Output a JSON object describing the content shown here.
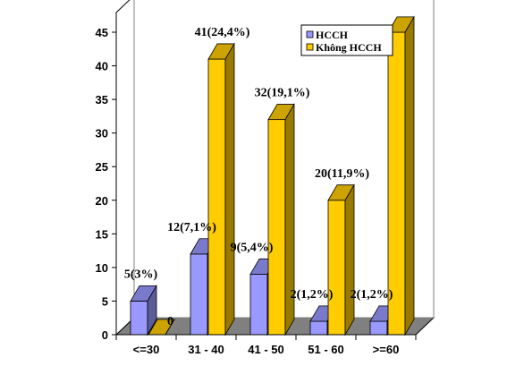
{
  "chart_data": {
    "type": "bar",
    "categories": [
      "<=30",
      "31 - 40",
      "41 - 50",
      "51 - 60",
      ">=60"
    ],
    "series": [
      {
        "name": "HCCH",
        "values": [
          5,
          12,
          9,
          2,
          2
        ],
        "labels": [
          "5(3%)",
          "12(7,1%)",
          "9(5,4%)",
          "2(1,2%)",
          "2(1,2%)"
        ],
        "color": "#9999ff"
      },
      {
        "name": "Không HCCH",
        "values": [
          0,
          41,
          32,
          20,
          45
        ],
        "labels": [
          "0",
          "41(24,4%)",
          "32(19,1%)",
          "20(11,9%)",
          ""
        ],
        "color": "#ffcc00"
      }
    ],
    "ylim": [
      0,
      45
    ],
    "yticks": [
      0,
      5,
      10,
      15,
      20,
      25,
      30,
      35,
      40,
      45
    ],
    "grid": false,
    "legend": "top-right",
    "style": "3d-column"
  }
}
